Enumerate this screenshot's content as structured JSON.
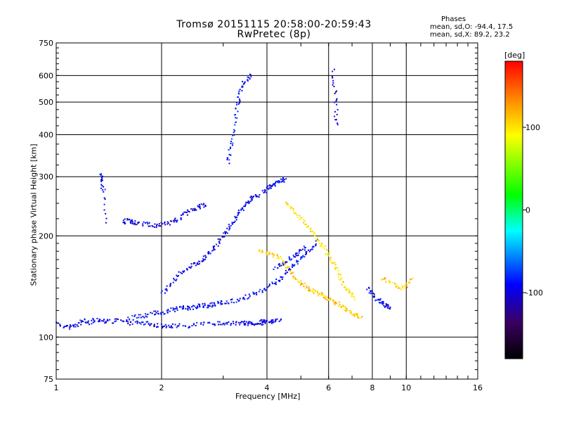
{
  "chart_data": {
    "type": "scatter",
    "title": "Tromsø 20151115 20:58:00-20:59:43",
    "subtitle": "RwPretec (8p)",
    "xlabel": "Frequency [MHz]",
    "ylabel": "Stationary phase Virtual Height [km]",
    "x_scale": "log",
    "y_scale": "log",
    "xlim": [
      1,
      16
    ],
    "ylim": [
      75,
      750
    ],
    "x_ticks": [
      1,
      2,
      4,
      6,
      8,
      10,
      16
    ],
    "x_tick_labels": [
      "1",
      "2",
      "4",
      "6",
      "8",
      "10",
      "16"
    ],
    "y_ticks": [
      75,
      100,
      200,
      300,
      400,
      500,
      600,
      750
    ],
    "y_tick_labels": [
      "75",
      "100",
      "200",
      "300",
      "400",
      "500",
      "600",
      "750"
    ],
    "grid": true,
    "stats": {
      "heading": "Phases",
      "o_line": "mean, sd,O: -94.4, 17.5",
      "x_line": "mean, sd,X:  89.2, 23.2"
    },
    "colorbar": {
      "label": "[deg]",
      "range": [
        -180,
        180
      ],
      "ticks": [
        100,
        0,
        -100
      ],
      "tick_labels": [
        "100",
        "0",
        "-100"
      ],
      "colors": [
        "#000000",
        "#3a0060",
        "#0000ff",
        "#00ffff",
        "#00ff00",
        "#ffff00",
        "#ff8000",
        "#ff0000"
      ]
    },
    "series": [
      {
        "comment_free": true,
        "traces": [
          {
            "phase": -95,
            "pts": [
              [
                1.0,
                110
              ],
              [
                1.05,
                108
              ],
              [
                1.1,
                107
              ],
              [
                1.15,
                109
              ],
              [
                1.2,
                112
              ],
              [
                1.25,
                110
              ],
              [
                1.3,
                113
              ],
              [
                1.35,
                112
              ],
              [
                1.4,
                111
              ],
              [
                1.5,
                112
              ],
              [
                1.6,
                110
              ],
              [
                1.7,
                111
              ],
              [
                1.8,
                110
              ],
              [
                1.9,
                109
              ],
              [
                2.0,
                108
              ],
              [
                2.1,
                108
              ],
              [
                2.2,
                108
              ],
              [
                2.4,
                108
              ],
              [
                2.6,
                109
              ],
              [
                2.8,
                110
              ],
              [
                3.0,
                110
              ],
              [
                3.2,
                110
              ],
              [
                3.4,
                110
              ],
              [
                3.6,
                110
              ],
              [
                3.8,
                110
              ],
              [
                4.0,
                111
              ],
              [
                4.2,
                111
              ]
            ]
          },
          {
            "phase": -90,
            "pts": [
              [
                1.6,
                113
              ],
              [
                1.7,
                115
              ],
              [
                1.8,
                116
              ],
              [
                1.9,
                118
              ],
              [
                2.0,
                118
              ],
              [
                2.1,
                120
              ],
              [
                2.2,
                121
              ],
              [
                2.3,
                122
              ],
              [
                2.4,
                122
              ],
              [
                2.5,
                123
              ],
              [
                2.6,
                124
              ],
              [
                2.7,
                124
              ],
              [
                2.8,
                125
              ],
              [
                2.9,
                126
              ],
              [
                3.0,
                127
              ],
              [
                3.2,
                128
              ],
              [
                3.4,
                130
              ],
              [
                3.6,
                133
              ],
              [
                3.8,
                136
              ],
              [
                4.0,
                140
              ],
              [
                4.2,
                145
              ],
              [
                4.4,
                150
              ],
              [
                4.6,
                158
              ],
              [
                4.8,
                165
              ],
              [
                5.0,
                172
              ],
              [
                5.2,
                178
              ],
              [
                5.4,
                185
              ],
              [
                5.6,
                195
              ]
            ]
          },
          {
            "phase": -100,
            "pts": [
              [
                1.55,
                220
              ],
              [
                1.6,
                222
              ],
              [
                1.65,
                220
              ],
              [
                1.7,
                218
              ],
              [
                1.8,
                217
              ],
              [
                1.9,
                215
              ],
              [
                2.0,
                216
              ],
              [
                2.1,
                218
              ],
              [
                2.2,
                222
              ],
              [
                2.3,
                230
              ],
              [
                2.4,
                238
              ],
              [
                2.5,
                242
              ],
              [
                2.6,
                245
              ],
              [
                2.7,
                248
              ]
            ]
          },
          {
            "phase": -95,
            "pts": [
              [
                2.0,
                135
              ],
              [
                2.1,
                142
              ],
              [
                2.2,
                150
              ],
              [
                2.3,
                158
              ],
              [
                2.4,
                162
              ],
              [
                2.5,
                165
              ],
              [
                2.6,
                170
              ],
              [
                2.7,
                175
              ],
              [
                2.8,
                182
              ],
              [
                2.9,
                190
              ],
              [
                3.0,
                200
              ],
              [
                3.1,
                210
              ],
              [
                3.2,
                220
              ],
              [
                3.3,
                230
              ],
              [
                3.4,
                240
              ],
              [
                3.5,
                250
              ],
              [
                3.6,
                258
              ],
              [
                3.7,
                262
              ],
              [
                3.8,
                265
              ]
            ]
          },
          {
            "phase": -85,
            "pts": [
              [
                3.1,
                330
              ],
              [
                3.15,
                360
              ],
              [
                3.2,
                400
              ],
              [
                3.25,
                450
              ],
              [
                3.3,
                500
              ],
              [
                3.35,
                530
              ],
              [
                3.4,
                560
              ],
              [
                3.5,
                580
              ],
              [
                3.6,
                600
              ]
            ]
          },
          {
            "phase": -90,
            "pts": [
              [
                3.9,
                270
              ],
              [
                4.0,
                275
              ],
              [
                4.1,
                280
              ],
              [
                4.2,
                285
              ],
              [
                4.3,
                290
              ],
              [
                4.4,
                292
              ],
              [
                4.5,
                295
              ]
            ]
          },
          {
            "phase": -90,
            "pts": [
              [
                4.2,
                160
              ],
              [
                4.4,
                165
              ],
              [
                4.6,
                170
              ],
              [
                4.8,
                175
              ],
              [
                5.0,
                180
              ],
              [
                5.2,
                185
              ]
            ]
          },
          {
            "phase": 110,
            "pts": [
              [
                3.8,
                180
              ],
              [
                4.0,
                178
              ],
              [
                4.2,
                175
              ],
              [
                4.4,
                170
              ],
              [
                4.6,
                160
              ],
              [
                4.8,
                150
              ],
              [
                5.0,
                145
              ],
              [
                5.2,
                140
              ],
              [
                5.4,
                138
              ],
              [
                5.6,
                135
              ],
              [
                5.8,
                132
              ],
              [
                6.0,
                130
              ],
              [
                6.2,
                128
              ],
              [
                6.4,
                125
              ],
              [
                6.6,
                122
              ],
              [
                6.8,
                120
              ],
              [
                7.0,
                118
              ],
              [
                7.2,
                116
              ],
              [
                7.5,
                115
              ]
            ]
          },
          {
            "phase": 100,
            "pts": [
              [
                4.5,
                250
              ],
              [
                4.7,
                240
              ],
              [
                4.9,
                230
              ],
              [
                5.1,
                220
              ],
              [
                5.3,
                210
              ],
              [
                5.5,
                200
              ],
              [
                5.7,
                190
              ],
              [
                5.9,
                180
              ],
              [
                6.1,
                170
              ],
              [
                6.3,
                160
              ],
              [
                6.5,
                150
              ],
              [
                6.7,
                140
              ],
              [
                6.9,
                135
              ],
              [
                7.1,
                130
              ]
            ]
          },
          {
            "phase": -100,
            "pts": [
              [
                6.2,
                620
              ],
              [
                6.25,
                540
              ],
              [
                6.3,
                480
              ],
              [
                6.3,
                420
              ]
            ]
          },
          {
            "phase": -95,
            "pts": [
              [
                1.35,
                310
              ],
              [
                1.35,
                290
              ],
              [
                1.37,
                270
              ],
              [
                1.38,
                215
              ]
            ]
          },
          {
            "phase": -95,
            "pts": [
              [
                7.8,
                140
              ],
              [
                8.0,
                135
              ],
              [
                8.2,
                130
              ],
              [
                8.4,
                128
              ],
              [
                8.6,
                126
              ],
              [
                8.8,
                124
              ],
              [
                9.0,
                122
              ]
            ]
          },
          {
            "phase": 110,
            "pts": [
              [
                8.5,
                150
              ],
              [
                9.0,
                145
              ],
              [
                9.5,
                140
              ],
              [
                10.0,
                142
              ],
              [
                10.5,
                150
              ]
            ]
          },
          {
            "phase": -95,
            "pts": [
              [
                3.4,
                110
              ],
              [
                3.6,
                110
              ],
              [
                3.8,
                111
              ],
              [
                4.0,
                111
              ],
              [
                4.2,
                112
              ],
              [
                4.4,
                112
              ]
            ]
          }
        ]
      }
    ]
  }
}
